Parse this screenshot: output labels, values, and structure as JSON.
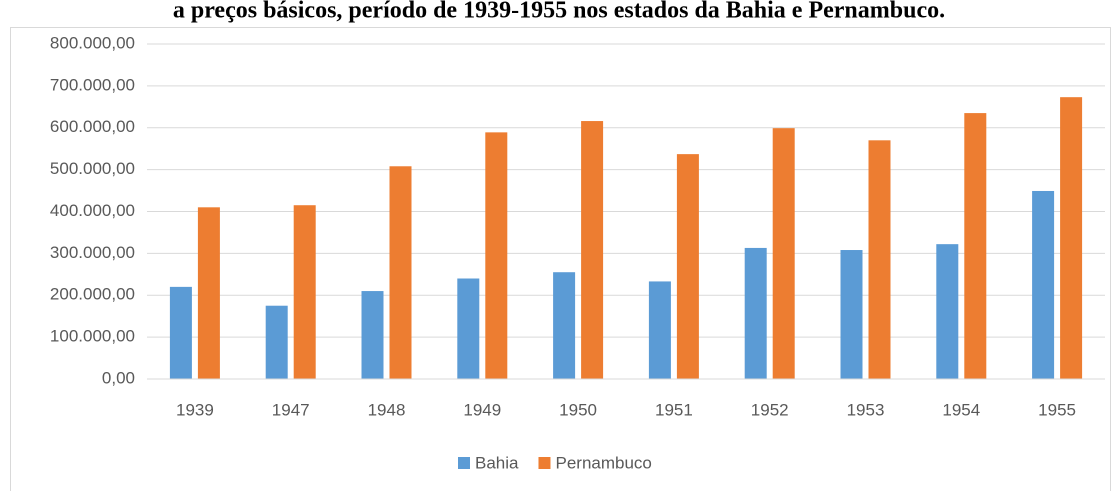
{
  "chart_data": {
    "type": "bar",
    "title": "a preços básicos, período de 1939-1955 nos estados da Bahia e Pernambuco.",
    "categories": [
      "1939",
      "1947",
      "1948",
      "1949",
      "1950",
      "1951",
      "1952",
      "1953",
      "1954",
      "1955"
    ],
    "series": [
      {
        "name": "Bahia",
        "color": "#5b9bd5",
        "values": [
          220000,
          175000,
          210000,
          240000,
          255000,
          233000,
          313000,
          308000,
          322000,
          449000
        ]
      },
      {
        "name": "Pernambuco",
        "color": "#ed7d31",
        "values": [
          410000,
          415000,
          508000,
          589000,
          616000,
          537000,
          599000,
          570000,
          635000,
          673000
        ]
      }
    ],
    "ylim": [
      0,
      800000
    ],
    "yticks": [
      {
        "value": 0,
        "label": "0,00"
      },
      {
        "value": 100000,
        "label": "100.000,00"
      },
      {
        "value": 200000,
        "label": "200.000,00"
      },
      {
        "value": 300000,
        "label": "300.000,00"
      },
      {
        "value": 400000,
        "label": "400.000,00"
      },
      {
        "value": 500000,
        "label": "500.000,00"
      },
      {
        "value": 600000,
        "label": "600.000,00"
      },
      {
        "value": 700000,
        "label": "700.000,00"
      },
      {
        "value": 800000,
        "label": "800.000,00"
      }
    ],
    "grid": true,
    "legend": "bottom"
  }
}
